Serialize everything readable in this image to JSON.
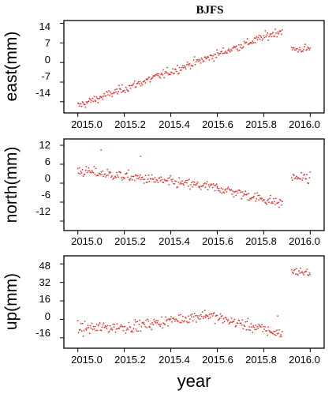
{
  "figure_title": "BJFS",
  "x_axis_label": "year",
  "colors": {
    "points": "#e8302a",
    "axes": "#000000"
  },
  "chart_data": [
    {
      "type": "scatter",
      "ylabel": "east(mm)",
      "xlim": [
        2014.94,
        2016.06
      ],
      "ylim": [
        -18,
        15
      ],
      "xticks": [
        "2015.0",
        "2015.2",
        "2015.4",
        "2015.6",
        "2015.8",
        "2016.0"
      ],
      "yticks": [
        "14",
        "7",
        "0",
        "-7",
        "-14"
      ],
      "series": [
        {
          "segments": [
            {
              "x_start": 2015.0,
              "x_end": 2015.88,
              "y_start": -15.5,
              "y_end": 11.5,
              "noise": 1.3
            },
            {
              "x_start": 2015.92,
              "x_end": 2016.0,
              "y_start": 4.5,
              "y_end": 5.0,
              "noise": 1.3
            }
          ]
        }
      ]
    },
    {
      "type": "scatter",
      "ylabel": "north(mm)",
      "xlim": [
        2014.94,
        2016.06
      ],
      "ylim": [
        -15,
        14
      ],
      "xticks": [
        "2015.0",
        "2015.2",
        "2015.4",
        "2015.6",
        "2015.8",
        "2016.0"
      ],
      "yticks": [
        "12",
        "6",
        "0",
        "-6",
        "-12"
      ],
      "series": [
        {
          "segments": [
            {
              "x_start": 2015.0,
              "x_end": 2015.6,
              "y_start": 4.0,
              "y_end": -1.5,
              "noise": 1.4
            },
            {
              "x_start": 2015.6,
              "x_end": 2015.88,
              "y_start": -1.5,
              "y_end": -6.5,
              "noise": 1.4
            },
            {
              "x_start": 2015.92,
              "x_end": 2016.0,
              "y_start": 2.0,
              "y_end": 1.5,
              "noise": 1.4
            }
          ],
          "outliers": [
            [
              2015.1,
              10.5
            ],
            [
              2015.27,
              8.5
            ],
            [
              2015.82,
              -15.0
            ]
          ]
        }
      ]
    },
    {
      "type": "scatter",
      "ylabel": "up(mm)",
      "xlim": [
        2014.94,
        2016.06
      ],
      "ylim": [
        -25,
        55
      ],
      "xticks": [
        "2015.0",
        "2015.2",
        "2015.4",
        "2015.6",
        "2015.8",
        "2016.0"
      ],
      "yticks": [
        "48",
        "32",
        "16",
        "0",
        "-16"
      ],
      "series": [
        {
          "segments": [
            {
              "x_start": 2015.0,
              "x_end": 2015.25,
              "y_start": -8,
              "y_end": -6,
              "noise": 4.5
            },
            {
              "x_start": 2015.25,
              "x_end": 2015.55,
              "y_start": -6,
              "y_end": 4,
              "noise": 4.0
            },
            {
              "x_start": 2015.55,
              "x_end": 2015.88,
              "y_start": 4,
              "y_end": -13,
              "noise": 4.0
            },
            {
              "x_start": 2015.92,
              "x_end": 2016.0,
              "y_start": 42,
              "y_end": 40,
              "noise": 3.0
            }
          ],
          "outliers": [
            [
              2015.86,
              3.0
            ]
          ]
        }
      ]
    }
  ]
}
